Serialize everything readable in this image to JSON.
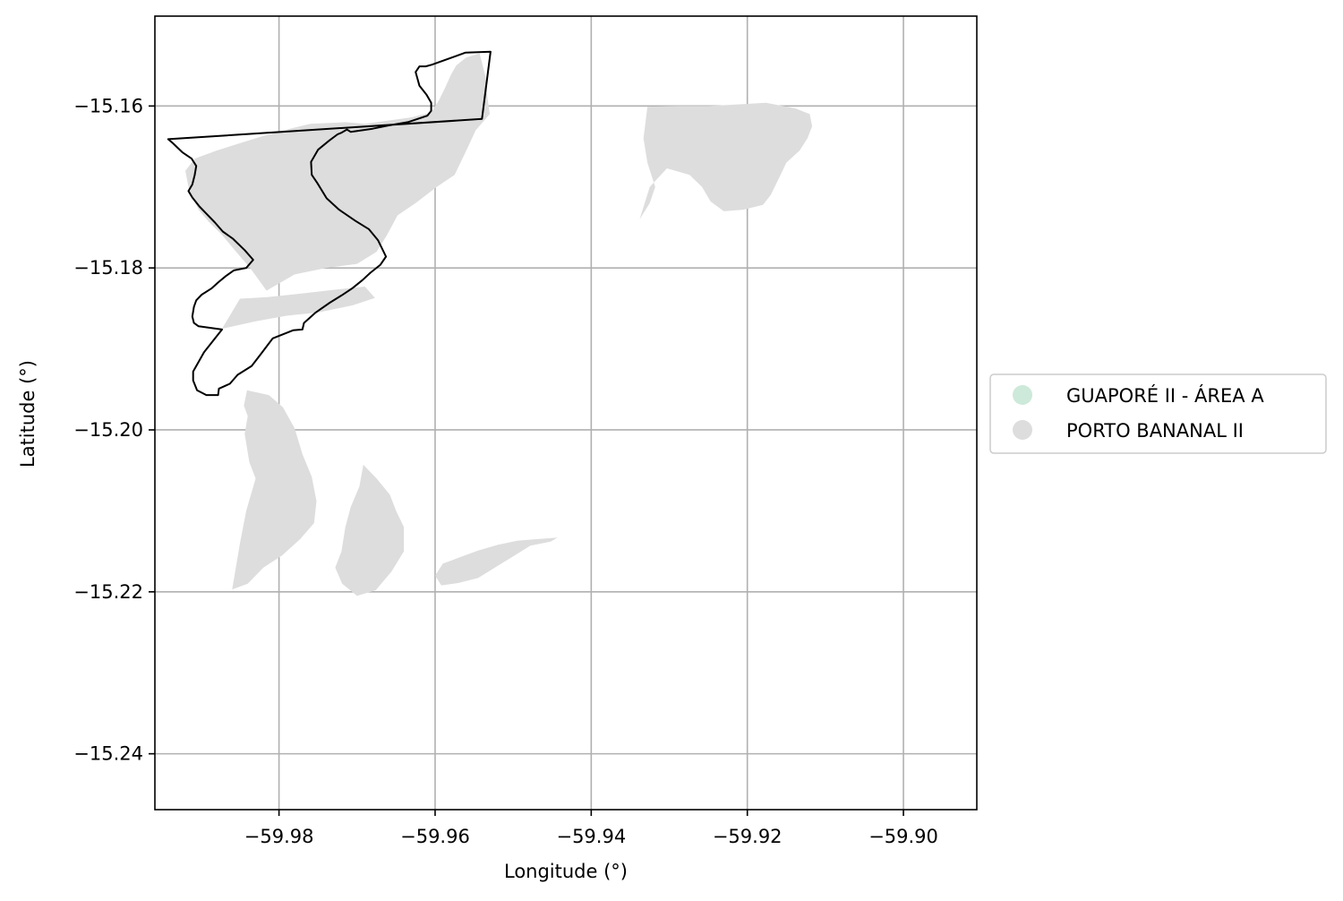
{
  "axes": {
    "xlabel": "Longitude (°)",
    "ylabel": "Latitude (°)",
    "xticks": [
      -59.98,
      -59.96,
      -59.94,
      -59.92,
      -59.9
    ],
    "yticks": [
      -15.16,
      -15.18,
      -15.2,
      -15.22,
      -15.24
    ],
    "xtick_labels": [
      "−59.98",
      "−59.96",
      "−59.94",
      "−59.92",
      "−59.90"
    ],
    "ytick_labels": [
      "−15.16",
      "−15.18",
      "−15.20",
      "−15.22",
      "−15.24"
    ],
    "xlim": [
      -59.9959,
      -59.8906
    ],
    "ylim": [
      -15.2469,
      -15.1489
    ],
    "grid": true
  },
  "legend": {
    "placement": "center-left outside",
    "items": [
      {
        "label": "GUAPORÉ II - ÁREA A",
        "color": "#cde9d9",
        "icon": "circle-marker"
      },
      {
        "label": "PORTO BANANAL II",
        "color": "#dddddd",
        "icon": "circle-marker"
      }
    ]
  },
  "colors": {
    "boundary": "#000000",
    "porto_bananal_fill": "#dddddd",
    "grid": "#b0b0b0"
  },
  "layers": {
    "boundary_outline": [
      [
        -59.954,
        -15.1616
      ],
      [
        -59.9529,
        -15.1533
      ],
      [
        -59.9561,
        -15.1534
      ],
      [
        -59.9604,
        -15.1549
      ],
      [
        -59.9612,
        -15.1551
      ],
      [
        -59.962,
        -15.1551
      ],
      [
        -59.9625,
        -15.1558
      ],
      [
        -59.962,
        -15.1575
      ],
      [
        -59.9611,
        -15.1586
      ],
      [
        -59.9605,
        -15.1596
      ],
      [
        -59.9605,
        -15.1606
      ],
      [
        -59.961,
        -15.1612
      ],
      [
        -59.9635,
        -15.162
      ],
      [
        -59.966,
        -15.1624
      ],
      [
        -59.968,
        -15.1628
      ],
      [
        -59.9708,
        -15.1632
      ],
      [
        -59.9713,
        -15.1629
      ],
      [
        -59.972,
        -15.1633
      ],
      [
        -59.9725,
        -15.1635
      ],
      [
        -59.9736,
        -15.1643
      ],
      [
        -59.975,
        -15.1654
      ],
      [
        -59.9759,
        -15.1669
      ],
      [
        -59.9758,
        -15.1685
      ],
      [
        -59.9751,
        -15.1695
      ],
      [
        -59.9739,
        -15.1714
      ],
      [
        -59.9723,
        -15.1728
      ],
      [
        -59.9702,
        -15.1742
      ],
      [
        -59.9685,
        -15.1752
      ],
      [
        -59.9673,
        -15.1766
      ],
      [
        -59.9663,
        -15.1786
      ],
      [
        -59.967,
        -15.1796
      ],
      [
        -59.9683,
        -15.1806
      ],
      [
        -59.9693,
        -15.1815
      ],
      [
        -59.9706,
        -15.1825
      ],
      [
        -59.972,
        -15.1834
      ],
      [
        -59.9735,
        -15.1843
      ],
      [
        -59.9753,
        -15.1855
      ],
      [
        -59.9768,
        -15.1868
      ],
      [
        -59.977,
        -15.1876
      ],
      [
        -59.9782,
        -15.1877
      ],
      [
        -59.9808,
        -15.1887
      ],
      [
        -59.9823,
        -15.1906
      ],
      [
        -59.9835,
        -15.1921
      ],
      [
        -59.9853,
        -15.1932
      ],
      [
        -59.9863,
        -15.1943
      ],
      [
        -59.9877,
        -15.1949
      ],
      [
        -59.9878,
        -15.1957
      ],
      [
        -59.9893,
        -15.1957
      ],
      [
        -59.9905,
        -15.1951
      ],
      [
        -59.991,
        -15.1939
      ],
      [
        -59.991,
        -15.1928
      ],
      [
        -59.9896,
        -15.1904
      ],
      [
        -59.9873,
        -15.1876
      ],
      [
        -59.9903,
        -15.1872
      ],
      [
        -59.9909,
        -15.1868
      ],
      [
        -59.9911,
        -15.186
      ],
      [
        -59.9909,
        -15.1848
      ],
      [
        -59.9906,
        -15.184
      ],
      [
        -59.9899,
        -15.1833
      ],
      [
        -59.9886,
        -15.1825
      ],
      [
        -59.9878,
        -15.1818
      ],
      [
        -59.9868,
        -15.181
      ],
      [
        -59.9858,
        -15.1803
      ],
      [
        -59.9842,
        -15.18
      ],
      [
        -59.9833,
        -15.179
      ],
      [
        -59.9844,
        -15.1778
      ],
      [
        -59.9859,
        -15.1764
      ],
      [
        -59.9872,
        -15.1755
      ],
      [
        -59.9882,
        -15.1744
      ],
      [
        -59.9893,
        -15.1733
      ],
      [
        -59.9902,
        -15.1724
      ],
      [
        -59.9911,
        -15.1713
      ],
      [
        -59.9916,
        -15.1705
      ],
      [
        -59.9911,
        -15.1697
      ],
      [
        -59.9908,
        -15.1685
      ],
      [
        -59.9906,
        -15.1674
      ],
      [
        -59.9912,
        -15.1665
      ],
      [
        -59.9924,
        -15.1657
      ],
      [
        -59.9936,
        -15.1646
      ],
      [
        -59.9942,
        -15.1641
      ]
    ],
    "porto_bananal": [
      [
        [
          -59.9816,
          -15.1828
        ],
        [
          -59.9837,
          -15.18
        ],
        [
          -59.9855,
          -15.178
        ],
        [
          -59.9874,
          -15.1758
        ],
        [
          -59.989,
          -15.1743
        ],
        [
          -59.9903,
          -15.1728
        ],
        [
          -59.9915,
          -15.1705
        ],
        [
          -59.992,
          -15.168
        ],
        [
          -59.9908,
          -15.1665
        ],
        [
          -59.988,
          -15.1655
        ],
        [
          -59.985,
          -15.1646
        ],
        [
          -59.982,
          -15.1637
        ],
        [
          -59.979,
          -15.1629
        ],
        [
          -59.976,
          -15.1622
        ],
        [
          -59.9715,
          -15.162
        ],
        [
          -59.969,
          -15.1622
        ],
        [
          -59.966,
          -15.1618
        ],
        [
          -59.963,
          -15.1614
        ],
        [
          -59.9605,
          -15.1608
        ],
        [
          -59.9595,
          -15.1593
        ],
        [
          -59.9587,
          -15.1577
        ],
        [
          -59.958,
          -15.1562
        ],
        [
          -59.9573,
          -15.155
        ],
        [
          -59.956,
          -15.154
        ],
        [
          -59.9543,
          -15.1535
        ],
        [
          -59.9535,
          -15.1565
        ],
        [
          -59.9533,
          -15.159
        ],
        [
          -59.953,
          -15.161
        ],
        [
          -59.9548,
          -15.163
        ],
        [
          -59.956,
          -15.1655
        ],
        [
          -59.9575,
          -15.1685
        ],
        [
          -59.9598,
          -15.17
        ],
        [
          -59.9625,
          -15.172
        ],
        [
          -59.9648,
          -15.1735
        ],
        [
          -59.9662,
          -15.176
        ],
        [
          -59.9675,
          -15.178
        ],
        [
          -59.97,
          -15.1795
        ],
        [
          -59.974,
          -15.18
        ],
        [
          -59.978,
          -15.1808
        ]
      ],
      [
        [
          -59.985,
          -15.1838
        ],
        [
          -59.9873,
          -15.1875
        ],
        [
          -59.983,
          -15.1866
        ],
        [
          -59.979,
          -15.1859
        ],
        [
          -59.975,
          -15.1855
        ],
        [
          -59.9705,
          -15.1846
        ],
        [
          -59.9677,
          -15.1837
        ],
        [
          -59.969,
          -15.1823
        ],
        [
          -59.973,
          -15.1827
        ],
        [
          -59.9775,
          -15.1832
        ],
        [
          -59.9815,
          -15.1836
        ]
      ],
      [
        [
          -59.9841,
          -15.1951
        ],
        [
          -59.9813,
          -15.1957
        ],
        [
          -59.9795,
          -15.1972
        ],
        [
          -59.978,
          -15.1998
        ],
        [
          -59.977,
          -15.203
        ],
        [
          -59.9758,
          -15.2058
        ],
        [
          -59.9752,
          -15.2088
        ],
        [
          -59.9755,
          -15.2115
        ],
        [
          -59.9773,
          -15.2135
        ],
        [
          -59.9796,
          -15.2155
        ],
        [
          -59.982,
          -15.217
        ],
        [
          -59.984,
          -15.219
        ],
        [
          -59.986,
          -15.2197
        ],
        [
          -59.985,
          -15.214
        ],
        [
          -59.9842,
          -15.21
        ],
        [
          -59.983,
          -15.206
        ],
        [
          -59.9838,
          -15.204
        ],
        [
          -59.9844,
          -15.2005
        ],
        [
          -59.984,
          -15.1983
        ],
        [
          -59.9845,
          -15.197
        ]
      ],
      [
        [
          -59.9692,
          -15.2043
        ],
        [
          -59.9675,
          -15.206
        ],
        [
          -59.9658,
          -15.208
        ],
        [
          -59.965,
          -15.21
        ],
        [
          -59.964,
          -15.212
        ],
        [
          -59.964,
          -15.215
        ],
        [
          -59.9656,
          -15.2175
        ],
        [
          -59.9676,
          -15.2198
        ],
        [
          -59.97,
          -15.2205
        ],
        [
          -59.9719,
          -15.219
        ],
        [
          -59.9728,
          -15.217
        ],
        [
          -59.972,
          -15.215
        ],
        [
          -59.9715,
          -15.212
        ],
        [
          -59.9708,
          -15.2095
        ],
        [
          -59.9697,
          -15.207
        ]
      ],
      [
        [
          -59.9443,
          -15.2133
        ],
        [
          -59.9452,
          -15.2138
        ],
        [
          -59.9478,
          -15.2143
        ],
        [
          -59.9498,
          -15.2155
        ],
        [
          -59.952,
          -15.2168
        ],
        [
          -59.9545,
          -15.2183
        ],
        [
          -59.957,
          -15.2189
        ],
        [
          -59.9592,
          -15.2192
        ],
        [
          -59.96,
          -15.218
        ],
        [
          -59.959,
          -15.2165
        ],
        [
          -59.957,
          -15.2158
        ],
        [
          -59.9545,
          -15.2149
        ],
        [
          -59.952,
          -15.2142
        ],
        [
          -59.9495,
          -15.2137
        ],
        [
          -59.947,
          -15.2135
        ]
      ],
      [
        [
          -59.9328,
          -15.1601
        ],
        [
          -59.929,
          -15.16
        ],
        [
          -59.925,
          -15.16
        ],
        [
          -59.921,
          -15.1598
        ],
        [
          -59.9176,
          -15.1596
        ],
        [
          -59.9138,
          -15.1603
        ],
        [
          -59.912,
          -15.161
        ],
        [
          -59.9117,
          -15.1625
        ],
        [
          -59.9123,
          -15.164
        ],
        [
          -59.9133,
          -15.1655
        ],
        [
          -59.915,
          -15.167
        ],
        [
          -59.916,
          -15.169
        ],
        [
          -59.917,
          -15.171
        ],
        [
          -59.918,
          -15.1722
        ],
        [
          -59.9205,
          -15.1728
        ],
        [
          -59.923,
          -15.173
        ],
        [
          -59.9247,
          -15.1718
        ],
        [
          -59.9258,
          -15.17
        ],
        [
          -59.9274,
          -15.1685
        ],
        [
          -59.9303,
          -15.1677
        ],
        [
          -59.9325,
          -15.17
        ],
        [
          -59.9338,
          -15.174
        ],
        [
          -59.9325,
          -15.172
        ],
        [
          -59.9318,
          -15.17
        ],
        [
          -59.9328,
          -15.167
        ],
        [
          -59.9333,
          -15.164
        ]
      ]
    ]
  }
}
